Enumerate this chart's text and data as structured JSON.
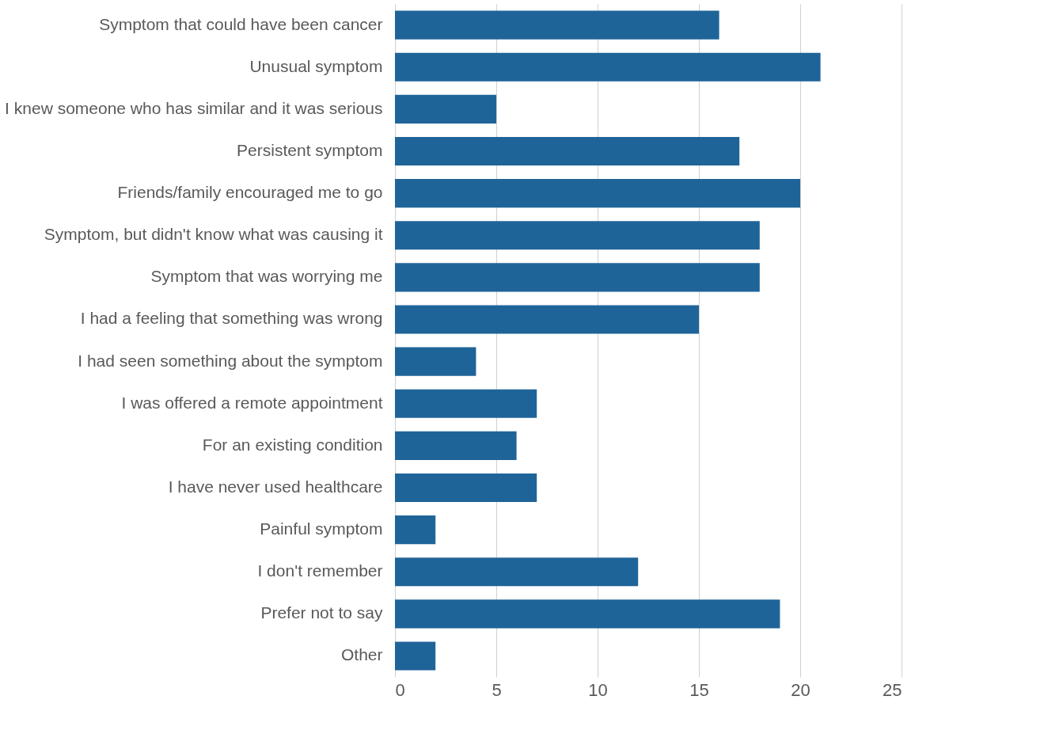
{
  "chart_data": {
    "type": "bar",
    "orientation": "horizontal",
    "categories": [
      "Symptom that could have been cancer",
      "Unusual symptom",
      "I knew someone who has similar and it was serious",
      "Persistent symptom",
      "Friends/family encouraged me to go",
      "Symptom, but didn't know what was causing it",
      "Symptom that was worrying me",
      "I had a feeling that something was wrong",
      "I had seen something about the symptom",
      "I was offered a remote appointment",
      "For an existing condition",
      "I have never used healthcare",
      "Painful symptom",
      "I don't remember",
      "Prefer not to say",
      "Other"
    ],
    "values": [
      16,
      21,
      5,
      17,
      20,
      18,
      18,
      15,
      4,
      7,
      6,
      7,
      2,
      12,
      19,
      2
    ],
    "color": "#1f6499",
    "xlim": [
      0,
      25
    ],
    "xticks": [
      0,
      5,
      10,
      15,
      20,
      25
    ],
    "grid": "x"
  }
}
